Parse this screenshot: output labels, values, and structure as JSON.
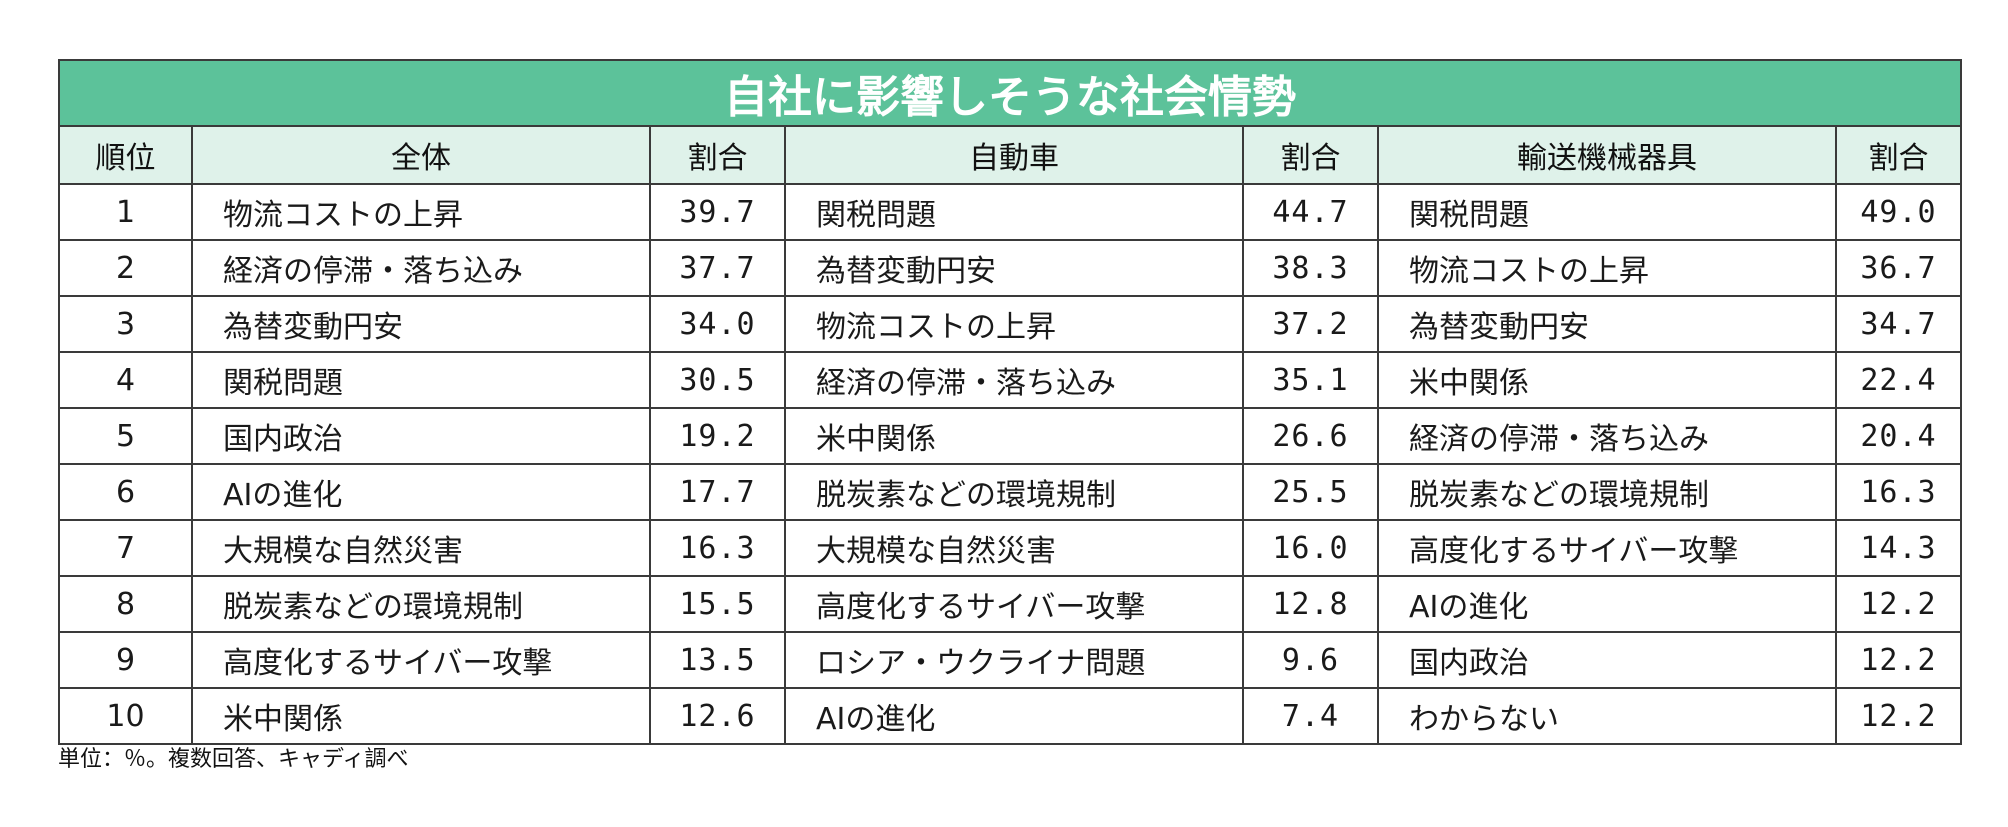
{
  "title": "自社に影響しそうな社会情勢",
  "headers": {
    "rank": "順位",
    "overall": "全体",
    "ratio": "割合",
    "automobile": "自動車",
    "transport_equipment": "輸送機械器具"
  },
  "rows": [
    {
      "rank": "1",
      "overall": "物流コストの上昇",
      "overall_pct": "39.7",
      "auto": "関税問題",
      "auto_pct": "44.7",
      "transport": "関税問題",
      "transport_pct": "49.0"
    },
    {
      "rank": "2",
      "overall": "経済の停滞・落ち込み",
      "overall_pct": "37.7",
      "auto": "為替変動円安",
      "auto_pct": "38.3",
      "transport": "物流コストの上昇",
      "transport_pct": "36.7"
    },
    {
      "rank": "3",
      "overall": "為替変動円安",
      "overall_pct": "34.0",
      "auto": "物流コストの上昇",
      "auto_pct": "37.2",
      "transport": "為替変動円安",
      "transport_pct": "34.7"
    },
    {
      "rank": "4",
      "overall": "関税問題",
      "overall_pct": "30.5",
      "auto": "経済の停滞・落ち込み",
      "auto_pct": "35.1",
      "transport": "米中関係",
      "transport_pct": "22.4"
    },
    {
      "rank": "5",
      "overall": "国内政治",
      "overall_pct": "19.2",
      "auto": "米中関係",
      "auto_pct": "26.6",
      "transport": "経済の停滞・落ち込み",
      "transport_pct": "20.4"
    },
    {
      "rank": "6",
      "overall": "AIの進化",
      "overall_pct": "17.7",
      "auto": "脱炭素などの環境規制",
      "auto_pct": "25.5",
      "transport": "脱炭素などの環境規制",
      "transport_pct": "16.3"
    },
    {
      "rank": "7",
      "overall": "大規模な自然災害",
      "overall_pct": "16.3",
      "auto": "大規模な自然災害",
      "auto_pct": "16.0",
      "transport": "高度化するサイバー攻撃",
      "transport_pct": "14.3"
    },
    {
      "rank": "8",
      "overall": "脱炭素などの環境規制",
      "overall_pct": "15.5",
      "auto": "高度化するサイバー攻撃",
      "auto_pct": "12.8",
      "transport": "AIの進化",
      "transport_pct": "12.2"
    },
    {
      "rank": "9",
      "overall": "高度化するサイバー攻撃",
      "overall_pct": "13.5",
      "auto": "ロシア・ウクライナ問題",
      "auto_pct": "9.6",
      "transport": "国内政治",
      "transport_pct": "12.2"
    },
    {
      "rank": "10",
      "overall": "米中関係",
      "overall_pct": "12.6",
      "auto": "AIの進化",
      "auto_pct": "7.4",
      "transport": "わからない",
      "transport_pct": "12.2"
    }
  ],
  "note": "単位：％。複数回答、キャディ調べ",
  "colors": {
    "title_bg": "#5cc29a",
    "header_bg": "#dff2ea",
    "border": "#3a3a3a"
  }
}
